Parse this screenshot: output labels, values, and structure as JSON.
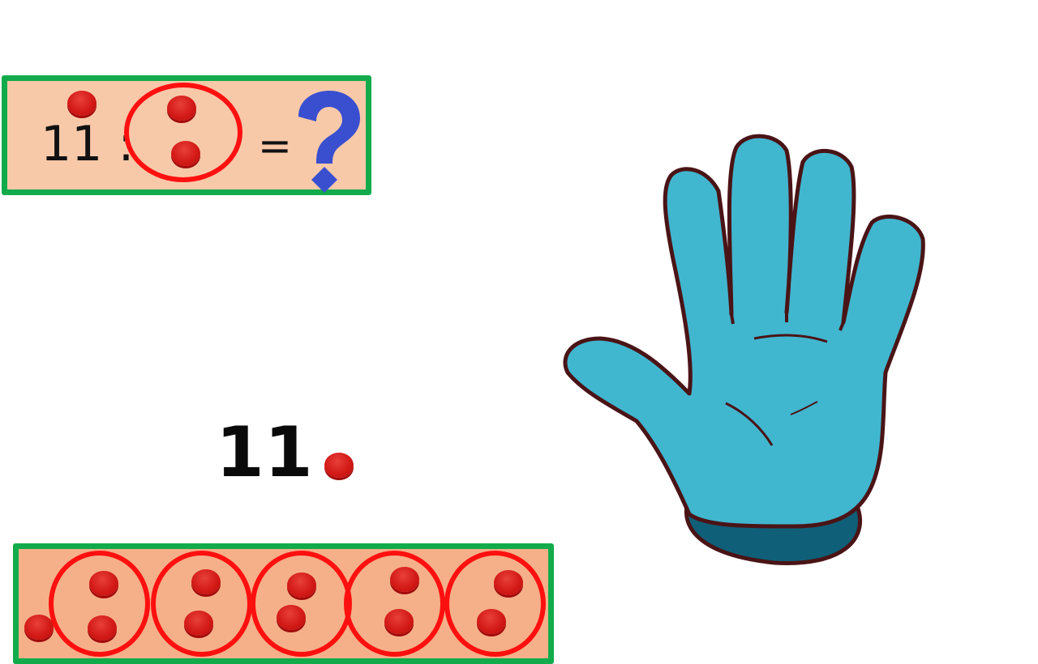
{
  "top_equation": {
    "dividend": "11 :",
    "equals": "=",
    "unknown_icon": "question-mark-icon"
  },
  "main_number": "11",
  "groups": {
    "group_count": 5,
    "items_per_group": 2,
    "remainder": 1
  },
  "hand": {
    "icon": "open-hand-five-fingers-icon",
    "fingers_shown": 5
  },
  "colors": {
    "frame_green": "#12ab4b",
    "panel_peach_top": "#f8c9a9",
    "panel_peach_bottom": "#f5b089",
    "counter_red": "#d31a17",
    "ring_red": "#ff1010",
    "question_blue": "#3a4fcf",
    "hand_blue": "#41b6cf"
  }
}
